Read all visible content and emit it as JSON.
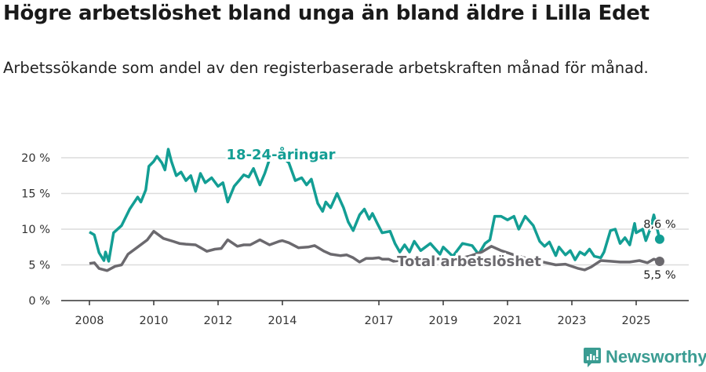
{
  "title": "Högre arbetslöshet bland unga än bland äldre i Lilla Edet",
  "subtitle": "Arbetssökande som andel av den registerbaserade arbetskraften månad för månad.",
  "logo_text": "Newsworthy",
  "chart_data": {
    "type": "line",
    "title": "Högre arbetslöshet bland unga än bland äldre i Lilla Edet",
    "xlabel": "",
    "ylabel": "",
    "ylim": [
      0,
      21
    ],
    "xlim": [
      2007.1,
      2026.5
    ],
    "yticks": [
      0,
      5,
      10,
      15,
      20
    ],
    "ytick_labels": [
      "0 %",
      "5 %",
      "10 %",
      "15 %",
      "20 %"
    ],
    "xticks": [
      2008,
      2010,
      2012,
      2014,
      2017,
      2019,
      2021,
      2023,
      2025
    ],
    "xtick_labels": [
      "2008",
      "2010",
      "2012",
      "2014",
      "2017",
      "2019",
      "2021",
      "2023",
      "2025"
    ],
    "grid": true,
    "series": [
      {
        "name": "18-24-åringar",
        "color": "#139e94",
        "end_label": "8,6 %",
        "x": [
          2008.0,
          2008.15,
          2008.3,
          2008.45,
          2008.5,
          2008.6,
          2008.75,
          2009.0,
          2009.25,
          2009.5,
          2009.6,
          2009.75,
          2009.85,
          2010.0,
          2010.1,
          2010.25,
          2010.35,
          2010.45,
          2010.55,
          2010.7,
          2010.85,
          2011.0,
          2011.15,
          2011.3,
          2011.45,
          2011.6,
          2011.8,
          2012.0,
          2012.15,
          2012.3,
          2012.5,
          2012.65,
          2012.8,
          2012.95,
          2013.1,
          2013.3,
          2013.45,
          2013.6,
          2013.9,
          2014.2,
          2014.4,
          2014.6,
          2014.75,
          2014.9,
          2015.1,
          2015.25,
          2015.35,
          2015.5,
          2015.7,
          2015.9,
          2016.05,
          2016.2,
          2016.4,
          2016.55,
          2016.7,
          2016.8,
          2016.95,
          2017.1,
          2017.35,
          2017.5,
          2017.65,
          2017.8,
          2017.95,
          2018.1,
          2018.3,
          2018.6,
          2018.9,
          2019.0,
          2019.3,
          2019.6,
          2019.9,
          2020.1,
          2020.3,
          2020.45,
          2020.6,
          2020.8,
          2021.0,
          2021.2,
          2021.35,
          2021.55,
          2021.8,
          2022.0,
          2022.15,
          2022.3,
          2022.5,
          2022.6,
          2022.8,
          2022.95,
          2023.1,
          2023.25,
          2023.4,
          2023.55,
          2023.7,
          2023.9,
          2024.0,
          2024.2,
          2024.35,
          2024.5,
          2024.65,
          2024.8,
          2024.95,
          2025.0,
          2025.2,
          2025.3,
          2025.45,
          2025.55,
          2025.73
        ],
        "values": [
          9.6,
          9.2,
          6.7,
          5.6,
          6.8,
          5.5,
          9.5,
          10.5,
          12.8,
          14.5,
          13.8,
          15.5,
          18.8,
          19.5,
          20.2,
          19.3,
          18.3,
          21.2,
          19.5,
          17.5,
          18.0,
          16.8,
          17.5,
          15.3,
          17.8,
          16.5,
          17.2,
          16.0,
          16.5,
          13.8,
          16.0,
          16.8,
          17.6,
          17.3,
          18.5,
          16.2,
          17.8,
          19.8,
          20.5,
          19.3,
          16.8,
          17.2,
          16.2,
          17.0,
          13.6,
          12.5,
          13.8,
          13.0,
          15.0,
          13.0,
          11.0,
          9.8,
          12.0,
          12.8,
          11.4,
          12.2,
          10.8,
          9.5,
          9.7,
          8.0,
          6.8,
          7.8,
          6.8,
          8.3,
          7.0,
          8.0,
          6.5,
          7.5,
          6.2,
          8.0,
          7.7,
          6.5,
          8.0,
          8.5,
          11.8,
          11.8,
          11.3,
          11.8,
          10.0,
          11.8,
          10.5,
          8.3,
          7.6,
          8.2,
          6.3,
          7.5,
          6.4,
          7.0,
          5.7,
          6.8,
          6.4,
          7.2,
          6.2,
          6.0,
          6.8,
          9.8,
          10.0,
          8.0,
          8.8,
          7.8,
          10.8,
          9.5,
          10.0,
          8.4,
          10.2,
          12.0,
          8.6
        ]
      },
      {
        "name": "Total arbetslöshet",
        "color": "#6b696e",
        "end_label": "5,5 %",
        "x": [
          2008.0,
          2008.15,
          2008.3,
          2008.55,
          2008.8,
          2009.0,
          2009.2,
          2009.5,
          2009.8,
          2010.0,
          2010.3,
          2010.6,
          2010.8,
          2011.0,
          2011.3,
          2011.5,
          2011.65,
          2011.9,
          2012.1,
          2012.3,
          2012.6,
          2012.8,
          2013.0,
          2013.3,
          2013.6,
          2013.9,
          2014.0,
          2014.2,
          2014.5,
          2014.8,
          2015.0,
          2015.3,
          2015.5,
          2015.8,
          2016.0,
          2016.2,
          2016.4,
          2016.6,
          2016.8,
          2017.0,
          2017.1,
          2017.3,
          2017.45,
          2018.0,
          2018.5,
          2019.0,
          2019.5,
          2019.8,
          2020.2,
          2020.5,
          2020.8,
          2021.0,
          2021.2,
          2021.6,
          2022.0,
          2022.5,
          2022.8,
          2023.2,
          2023.4,
          2023.6,
          2023.9,
          2024.2,
          2024.5,
          2024.8,
          2025.1,
          2025.35,
          2025.55,
          2025.73
        ],
        "values": [
          5.2,
          5.3,
          4.5,
          4.2,
          4.8,
          5.0,
          6.5,
          7.5,
          8.5,
          9.7,
          8.7,
          8.3,
          8.0,
          7.9,
          7.8,
          7.3,
          6.9,
          7.2,
          7.3,
          8.5,
          7.6,
          7.8,
          7.8,
          8.5,
          7.8,
          8.3,
          8.4,
          8.1,
          7.4,
          7.5,
          7.7,
          6.9,
          6.5,
          6.3,
          6.4,
          6.0,
          5.4,
          5.9,
          5.9,
          6.0,
          5.8,
          5.8,
          5.5,
          5.8,
          5.7,
          5.9,
          5.9,
          6.2,
          6.8,
          7.6,
          7.0,
          6.7,
          6.4,
          5.9,
          5.5,
          5.0,
          5.1,
          4.5,
          4.3,
          4.7,
          5.6,
          5.5,
          5.4,
          5.4,
          5.6,
          5.3,
          5.8,
          5.5
        ]
      }
    ]
  }
}
